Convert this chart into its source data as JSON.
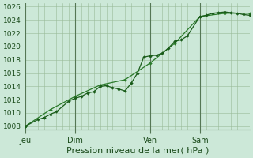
{
  "xlabel": "Pression niveau de la mer( hPa )",
  "ylim": [
    1007.5,
    1026.5
  ],
  "yticks": [
    1008,
    1010,
    1012,
    1014,
    1016,
    1018,
    1020,
    1022,
    1024,
    1026
  ],
  "background_color": "#cce8d8",
  "grid_color": "#99bb99",
  "line_color1": "#1a5c1a",
  "line_color2": "#2a7a2a",
  "xtick_labels": [
    "Jeu",
    "Dim",
    "Ven",
    "Sam"
  ],
  "xtick_positions": [
    0,
    16,
    40,
    56
  ],
  "total_points": 72,
  "series1_x": [
    0,
    4,
    6,
    8,
    10,
    14,
    16,
    18,
    20,
    22,
    24,
    26,
    28,
    30,
    32,
    34,
    36,
    38,
    40,
    42,
    44,
    46,
    48,
    50,
    52,
    56,
    58,
    60,
    62,
    64,
    66,
    68,
    70,
    72
  ],
  "series1_y": [
    1008.0,
    1009.0,
    1009.3,
    1009.8,
    1010.2,
    1011.8,
    1012.2,
    1012.5,
    1013.0,
    1013.2,
    1014.0,
    1014.1,
    1013.8,
    1013.6,
    1013.3,
    1014.5,
    1016.0,
    1018.4,
    1018.6,
    1018.7,
    1019.0,
    1019.8,
    1020.8,
    1021.0,
    1021.6,
    1024.5,
    1024.7,
    1025.0,
    1025.1,
    1025.2,
    1025.1,
    1025.0,
    1024.8,
    1024.7
  ],
  "series2_x": [
    0,
    8,
    16,
    24,
    32,
    40,
    48,
    56,
    64,
    72
  ],
  "series2_y": [
    1008.0,
    1010.5,
    1012.5,
    1014.2,
    1015.0,
    1017.5,
    1020.5,
    1024.5,
    1025.0,
    1025.0
  ],
  "vline_positions": [
    0,
    16,
    40,
    56
  ],
  "ylabel_fontsize": 6.5,
  "xlabel_fontsize": 8,
  "xtick_fontsize": 7
}
